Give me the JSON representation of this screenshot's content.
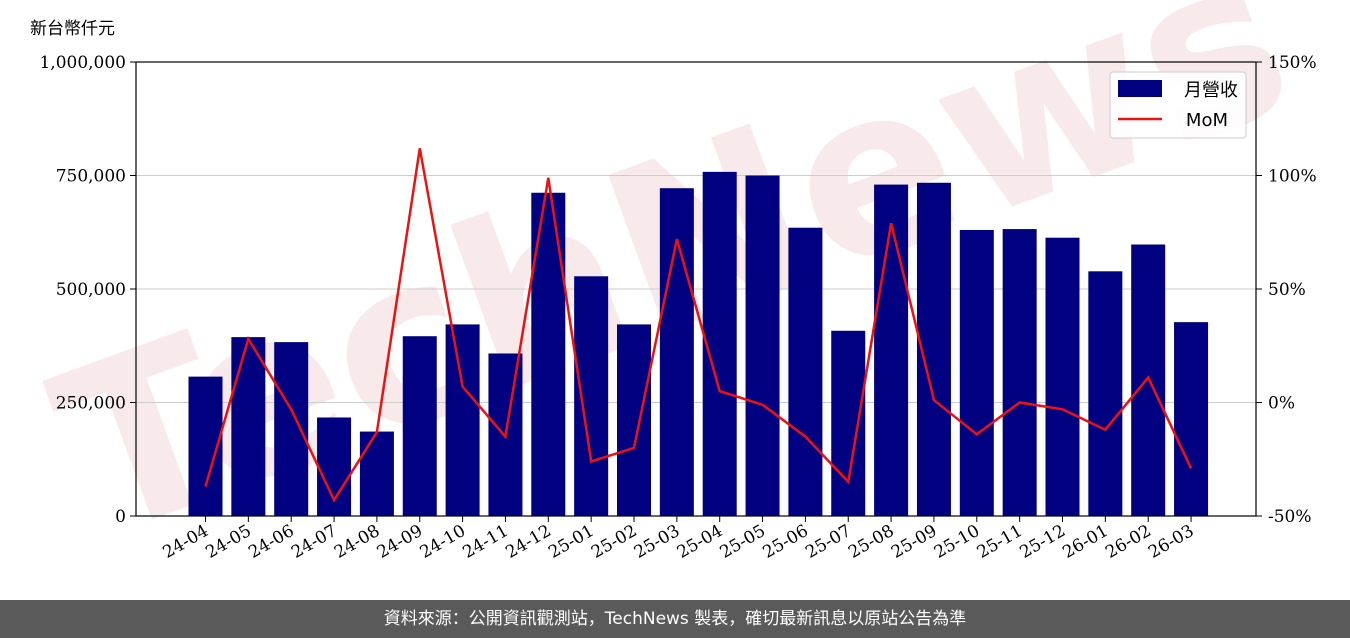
{
  "watermark": "TechNews",
  "footer": "資料來源：公開資訊觀測站，TechNews 製表，確切最新訊息以原站公告為準",
  "colors": {
    "bar": "#000080",
    "line": "#ee1111",
    "grid": "#cccccc"
  },
  "chart_data": {
    "type": "bar",
    "ylabel": "新台幣仟元",
    "categories": [
      "24-04",
      "24-05",
      "24-06",
      "24-07",
      "24-08",
      "24-09",
      "24-10",
      "24-11",
      "24-12",
      "25-01",
      "25-02",
      "25-03",
      "25-04",
      "25-05",
      "25-06",
      "25-07",
      "25-08",
      "25-09",
      "25-10",
      "25-11",
      "25-12",
      "26-01",
      "26-02",
      "26-03"
    ],
    "series": [
      {
        "name": "月營收",
        "type": "bar",
        "axis": "left",
        "values": [
          307000,
          394000,
          383000,
          217000,
          186000,
          396000,
          422000,
          358000,
          712000,
          528000,
          422000,
          722000,
          758000,
          750000,
          635000,
          408000,
          730000,
          734000,
          630000,
          632000,
          613000,
          539000,
          598000,
          427000
        ]
      },
      {
        "name": "MoM",
        "type": "line",
        "axis": "right",
        "values": [
          -37,
          28,
          -3,
          -43,
          -13,
          112,
          7,
          -15,
          99,
          -26,
          -20,
          72,
          5,
          -1,
          -15,
          -35,
          79,
          1,
          -14,
          0,
          -3,
          -12,
          11,
          -29
        ]
      }
    ],
    "ylim_left": [
      0,
      1000000
    ],
    "ylim_right": [
      -50,
      150
    ],
    "left_ticks": [
      0,
      250000,
      500000,
      750000,
      1000000
    ],
    "left_tick_labels": [
      "0",
      "250,000",
      "500,000",
      "750,000",
      "1,000,000"
    ],
    "right_ticks": [
      -50,
      0,
      50,
      100,
      150
    ],
    "right_tick_labels": [
      "-50%",
      "0%",
      "50%",
      "100%",
      "150%"
    ],
    "grid": true,
    "legend_position": "top-right"
  }
}
